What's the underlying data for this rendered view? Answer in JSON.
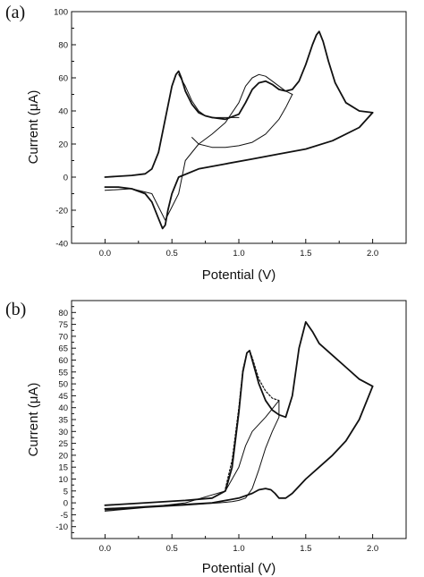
{
  "chart_data": [
    {
      "type": "line",
      "panel_label": "(a)",
      "xlabel": "Potential (V)",
      "ylabel": "Current (μA)",
      "xlim": [
        -0.25,
        2.25
      ],
      "ylim": [
        -40,
        100
      ],
      "x_ticks": [
        0.0,
        0.5,
        1.0,
        1.5,
        2.0
      ],
      "x_tick_labels": [
        "0.0",
        "0.5",
        "1.0",
        "1.5",
        "2.0"
      ],
      "y_ticks": [
        -40,
        -20,
        0,
        20,
        40,
        60,
        80,
        100
      ],
      "y_tick_labels": [
        "-40",
        "-20",
        "0",
        "20",
        "40",
        "60",
        "80",
        "100"
      ],
      "grid": false,
      "series": [
        {
          "color": "#111111",
          "width": 1.8,
          "dash": "none",
          "x": [
            0.0,
            0.2,
            0.3,
            0.35,
            0.4,
            0.45,
            0.5,
            0.53,
            0.55,
            0.57,
            0.6,
            0.65,
            0.7,
            0.75,
            0.8
          ],
          "y": [
            0,
            1,
            2,
            5,
            15,
            35,
            55,
            62,
            64,
            60,
            52,
            44,
            39,
            37,
            36
          ]
        },
        {
          "color": "#111111",
          "width": 1.8,
          "dash": "none",
          "x": [
            0.8,
            0.9,
            1.0,
            1.05,
            1.1,
            1.15,
            1.2,
            1.25,
            1.3,
            1.35,
            1.4,
            1.45,
            1.5,
            1.55,
            1.58,
            1.6,
            1.63,
            1.67,
            1.72,
            1.8,
            1.9,
            2.0
          ],
          "y": [
            36,
            35,
            38,
            45,
            53,
            57,
            58,
            56,
            53,
            52,
            53,
            58,
            68,
            80,
            86,
            88,
            82,
            70,
            57,
            45,
            40,
            39
          ]
        },
        {
          "color": "#111111",
          "width": 1.8,
          "dash": "none",
          "x": [
            2.0,
            1.9,
            1.7,
            1.5,
            1.3,
            1.1,
            0.9,
            0.7,
            0.55,
            0.5,
            0.47,
            0.45,
            0.43,
            0.4,
            0.35,
            0.3,
            0.2,
            0.1,
            0.0
          ],
          "y": [
            39,
            30,
            22,
            17,
            14,
            11,
            8,
            5,
            0,
            -10,
            -20,
            -29,
            -31,
            -25,
            -15,
            -10,
            -7,
            -6,
            -6
          ]
        },
        {
          "color": "#111111",
          "width": 1.0,
          "dash": "none",
          "x": [
            0.0,
            0.2,
            0.35,
            0.45,
            0.55,
            0.6,
            0.7,
            0.8,
            0.9,
            1.0,
            1.05,
            1.1,
            1.15,
            1.2,
            1.25,
            1.3,
            1.35,
            1.4
          ],
          "y": [
            -8,
            -7,
            -10,
            -26,
            -10,
            10,
            20,
            26,
            33,
            45,
            55,
            60,
            62,
            61,
            58,
            55,
            52,
            50
          ]
        },
        {
          "color": "#111111",
          "width": 1.0,
          "dash": "none",
          "x": [
            1.4,
            1.35,
            1.3,
            1.2,
            1.1,
            1.0,
            0.9,
            0.8,
            0.7,
            0.65
          ],
          "y": [
            50,
            42,
            35,
            26,
            21,
            19,
            18,
            18,
            20,
            24
          ]
        },
        {
          "color": "#111111",
          "width": 1.0,
          "dash": "none",
          "x": [
            0.55,
            0.6,
            0.65,
            0.7,
            0.75,
            0.8,
            0.85,
            0.9,
            1.0
          ],
          "y": [
            62,
            55,
            46,
            40,
            37,
            36,
            36,
            36,
            36
          ]
        }
      ]
    },
    {
      "type": "line",
      "panel_label": "(b)",
      "xlabel": "Potential (V)",
      "ylabel": "Current (μA)",
      "xlim": [
        -0.25,
        2.25
      ],
      "ylim": [
        -15,
        85
      ],
      "x_ticks": [
        0.0,
        0.5,
        1.0,
        1.5,
        2.0
      ],
      "x_tick_labels": [
        "0.0",
        "0.5",
        "1.0",
        "1.5",
        "2.0"
      ],
      "y_ticks": [
        -10,
        -5,
        0,
        5,
        10,
        15,
        20,
        25,
        30,
        35,
        40,
        45,
        50,
        55,
        60,
        65,
        70,
        75,
        80
      ],
      "y_tick_labels": [
        "-10",
        "-5",
        "0",
        "5",
        "10",
        "15",
        "20",
        "25",
        "30",
        "35",
        "40",
        "45",
        "50",
        "55",
        "60",
        "65",
        "70",
        "75",
        "80"
      ],
      "grid": false,
      "series": [
        {
          "color": "#111111",
          "width": 1.8,
          "dash": "none",
          "x": [
            0.0,
            0.3,
            0.6,
            0.8,
            0.9,
            0.95,
            1.0,
            1.03,
            1.06,
            1.08,
            1.1,
            1.15,
            1.2,
            1.25,
            1.3,
            1.35,
            1.4,
            1.45,
            1.5,
            1.55,
            1.6,
            1.7,
            1.8,
            1.9,
            2.0
          ],
          "y": [
            -1,
            0,
            1,
            2,
            5,
            15,
            38,
            55,
            63,
            64,
            60,
            50,
            43,
            39,
            37,
            36,
            45,
            65,
            76,
            72,
            67,
            62,
            57,
            52,
            49
          ]
        },
        {
          "color": "#111111",
          "width": 1.8,
          "dash": "none",
          "x": [
            2.0,
            1.9,
            1.8,
            1.7,
            1.6,
            1.5,
            1.4,
            1.35,
            1.3,
            1.27,
            1.24,
            1.2,
            1.15,
            1.1,
            1.0,
            0.8,
            0.5,
            0.2,
            0.0
          ],
          "y": [
            49,
            35,
            26,
            20,
            15,
            10,
            4,
            2,
            2,
            4,
            5.5,
            6,
            5.5,
            4,
            2,
            0,
            -1,
            -2,
            -2.5
          ]
        },
        {
          "color": "#111111",
          "width": 1.0,
          "dash": "none",
          "x": [
            0.0,
            0.3,
            0.6,
            0.85,
            0.95,
            1.0,
            1.05,
            1.1,
            1.15,
            1.2,
            1.25,
            1.3,
            1.3,
            1.2,
            1.1,
            1.05,
            1.0,
            0.9,
            0.6,
            0.3,
            0.0
          ],
          "y": [
            -3,
            -2,
            -1,
            0,
            0.5,
            1,
            2,
            6,
            14,
            23,
            30,
            36,
            43,
            36,
            30,
            24,
            15,
            5,
            0,
            -2,
            -3.5
          ]
        },
        {
          "color": "#111111",
          "width": 1.2,
          "dash": "2,2",
          "x": [
            0.9,
            0.95,
            1.0,
            1.03,
            1.06,
            1.08,
            1.1,
            1.15,
            1.2,
            1.25,
            1.3
          ],
          "y": [
            6,
            18,
            40,
            56,
            63,
            64,
            61,
            52,
            47,
            44,
            43
          ]
        }
      ]
    }
  ]
}
